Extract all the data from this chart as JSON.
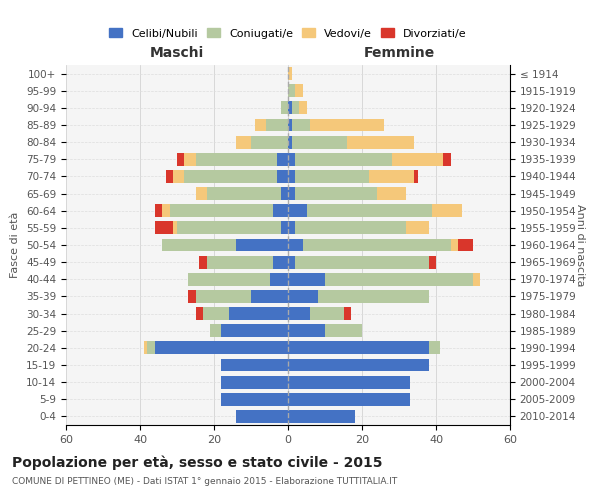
{
  "age_groups": [
    "0-4",
    "5-9",
    "10-14",
    "15-19",
    "20-24",
    "25-29",
    "30-34",
    "35-39",
    "40-44",
    "45-49",
    "50-54",
    "55-59",
    "60-64",
    "65-69",
    "70-74",
    "75-79",
    "80-84",
    "85-89",
    "90-94",
    "95-99",
    "100+"
  ],
  "birth_years": [
    "2010-2014",
    "2005-2009",
    "2000-2004",
    "1995-1999",
    "1990-1994",
    "1985-1989",
    "1980-1984",
    "1975-1979",
    "1970-1974",
    "1965-1969",
    "1960-1964",
    "1955-1959",
    "1950-1954",
    "1945-1949",
    "1940-1944",
    "1935-1939",
    "1930-1934",
    "1925-1929",
    "1920-1924",
    "1915-1919",
    "≤ 1914"
  ],
  "colors": {
    "celibe": "#4472c4",
    "coniugato": "#b5c9a0",
    "vedovo": "#f5c87a",
    "divorziato": "#d9362b"
  },
  "maschi": {
    "celibe": [
      14,
      18,
      18,
      18,
      36,
      18,
      16,
      10,
      5,
      4,
      14,
      2,
      4,
      2,
      3,
      3,
      0,
      0,
      0,
      0,
      0
    ],
    "coniugato": [
      0,
      0,
      0,
      0,
      2,
      3,
      7,
      15,
      22,
      18,
      20,
      28,
      28,
      20,
      25,
      22,
      10,
      6,
      2,
      0,
      0
    ],
    "vedovo": [
      0,
      0,
      0,
      0,
      1,
      0,
      0,
      0,
      0,
      0,
      0,
      1,
      2,
      3,
      3,
      3,
      4,
      3,
      0,
      0,
      0
    ],
    "divorziato": [
      0,
      0,
      0,
      0,
      0,
      0,
      2,
      2,
      0,
      2,
      0,
      5,
      2,
      0,
      2,
      2,
      0,
      0,
      0,
      0,
      0
    ]
  },
  "femmine": {
    "nubile": [
      18,
      33,
      33,
      38,
      38,
      10,
      6,
      8,
      10,
      2,
      4,
      2,
      5,
      2,
      2,
      2,
      1,
      1,
      1,
      0,
      0
    ],
    "coniugata": [
      0,
      0,
      0,
      0,
      3,
      10,
      9,
      30,
      40,
      36,
      40,
      30,
      34,
      22,
      20,
      26,
      15,
      5,
      2,
      2,
      0
    ],
    "vedova": [
      0,
      0,
      0,
      0,
      0,
      0,
      0,
      0,
      2,
      0,
      2,
      6,
      8,
      8,
      12,
      14,
      18,
      20,
      2,
      2,
      1
    ],
    "divorziata": [
      0,
      0,
      0,
      0,
      0,
      0,
      2,
      0,
      0,
      2,
      4,
      0,
      0,
      0,
      1,
      2,
      0,
      0,
      0,
      0,
      0
    ]
  },
  "xlim": 60,
  "title": "Popolazione per età, sesso e stato civile - 2015",
  "subtitle": "COMUNE DI PETTINEO (ME) - Dati ISTAT 1° gennaio 2015 - Elaborazione TUTTITALIA.IT",
  "ylabel_left": "Fasce di età",
  "ylabel_right": "Anni di nascita",
  "xlabel_left": "Maschi",
  "xlabel_right": "Femmine"
}
